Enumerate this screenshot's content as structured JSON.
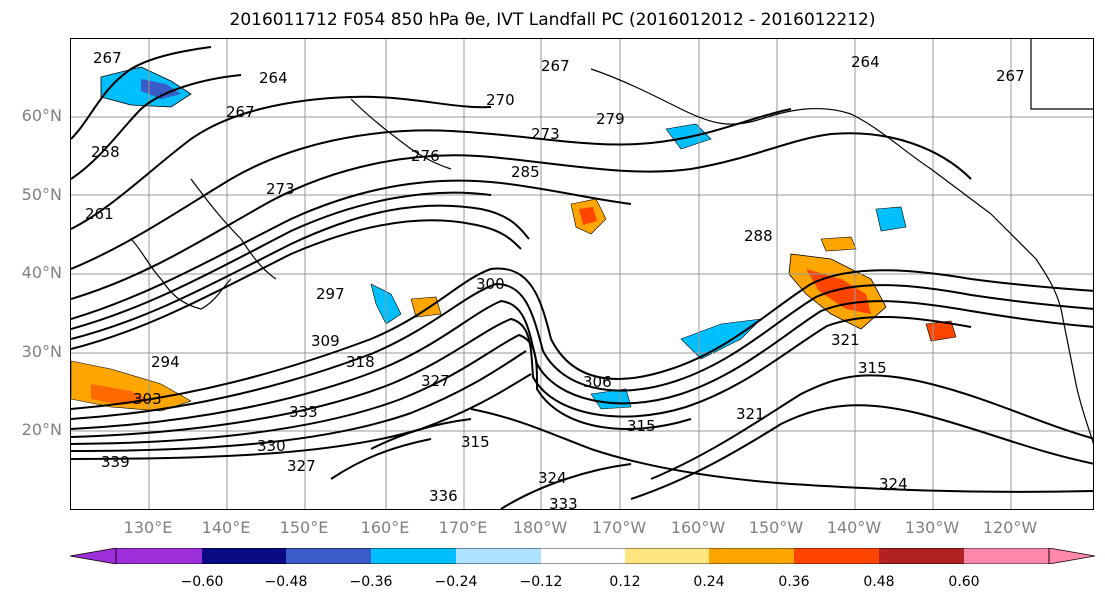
{
  "title": "2016011712 F054 850 hPa θe, IVT Landfall PC (2016012012 - 2016012212)",
  "lat_labels": [
    "60°N",
    "50°N",
    "40°N",
    "30°N",
    "20°N"
  ],
  "lon_labels": [
    "130°E",
    "140°E",
    "150°E",
    "160°E",
    "170°E",
    "180°W",
    "170°W",
    "160°W",
    "150°W",
    "140°W",
    "130°W",
    "120°W"
  ],
  "contour_labels": [
    "267",
    "264",
    "267",
    "258",
    "261",
    "273",
    "276",
    "270",
    "273",
    "279",
    "267",
    "264",
    "267",
    "285",
    "288",
    "297",
    "300",
    "309",
    "294",
    "303",
    "318",
    "327",
    "333",
    "330",
    "339",
    "327",
    "306",
    "315",
    "321",
    "315",
    "321",
    "324",
    "315",
    "324",
    "333",
    "336"
  ],
  "colorbar": {
    "tick_labels": [
      "−0.60",
      "−0.48",
      "−0.36",
      "−0.24",
      "−0.12",
      "0.12",
      "0.24",
      "0.36",
      "0.48",
      "0.60"
    ],
    "colors": [
      "#9b30d9",
      "#0a0a85",
      "#3a5cc8",
      "#00bfff",
      "#aee3ff",
      "#ffffff",
      "#ffe680",
      "#ffa500",
      "#ff4500",
      "#b22222",
      "#ff88aa"
    ]
  }
}
